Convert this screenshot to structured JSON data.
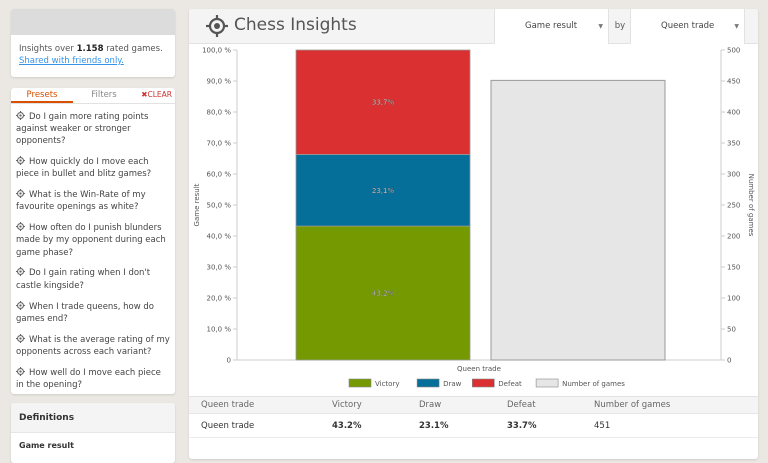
{
  "sidebar": {
    "info_prefix": "Insights over",
    "games_count": "1.158",
    "info_suffix": "rated games.",
    "share_link": "Shared with friends only.",
    "tabs": {
      "presets": "Presets",
      "filters": "Filters",
      "clear": "CLEAR"
    },
    "questions": [
      "Do I gain more rating points against weaker or stronger opponents?",
      "How quickly do I move each piece in bullet and blitz games?",
      "What is the Win-Rate of my favourite openings as white?",
      "How often do I punish blunders made by my opponent during each game phase?",
      "Do I gain rating when I don't castle kingside?",
      "When I trade queens, how do games end?",
      "What is the average rating of my opponents across each variant?",
      "How well do I move each piece in the opening?"
    ],
    "definitions_title": "Definitions",
    "definitions_term": "Game result"
  },
  "header": {
    "title": "Chess Insights",
    "metric_select": "Game result",
    "by_label": "by",
    "dimension_select": "Queen trade"
  },
  "colors": {
    "victory": "#759900",
    "draw": "#056e99",
    "defeat": "#db3031",
    "games": "#e6e6e6"
  },
  "chart_data": {
    "type": "bar",
    "categories": [
      "Queen trade"
    ],
    "xlabel": "Queen trade",
    "ylabel": "Game result",
    "y2label": "Number of games",
    "ylim": [
      0,
      100
    ],
    "y2lim": [
      0,
      500
    ],
    "yticks": [
      "0",
      "10,0 %",
      "20,0 %",
      "30,0 %",
      "40,0 %",
      "50,0 %",
      "60,0 %",
      "70,0 %",
      "80,0 %",
      "90,0 %",
      "100,0 %"
    ],
    "y2ticks": [
      "0",
      "50",
      "100",
      "150",
      "200",
      "250",
      "300",
      "350",
      "400",
      "450",
      "500"
    ],
    "series": [
      {
        "name": "Victory",
        "values": [
          43.2
        ],
        "label": "43,2%",
        "color": "#759900",
        "stack": "result"
      },
      {
        "name": "Draw",
        "values": [
          23.1
        ],
        "label": "23,1%",
        "color": "#056e99",
        "stack": "result"
      },
      {
        "name": "Defeat",
        "values": [
          33.7
        ],
        "label": "33,7%",
        "color": "#db3031",
        "stack": "result"
      },
      {
        "name": "Number of games",
        "values": [
          451
        ],
        "color": "#e6e6e6",
        "axis": "right"
      }
    ],
    "legend": [
      "Victory",
      "Draw",
      "Defeat",
      "Number of games"
    ]
  },
  "table": {
    "headers": [
      "Queen trade",
      "Victory",
      "Draw",
      "Defeat",
      "Number of games"
    ],
    "rows": [
      [
        "Queen trade",
        "43.2%",
        "23.1%",
        "33.7%",
        "451"
      ]
    ]
  }
}
